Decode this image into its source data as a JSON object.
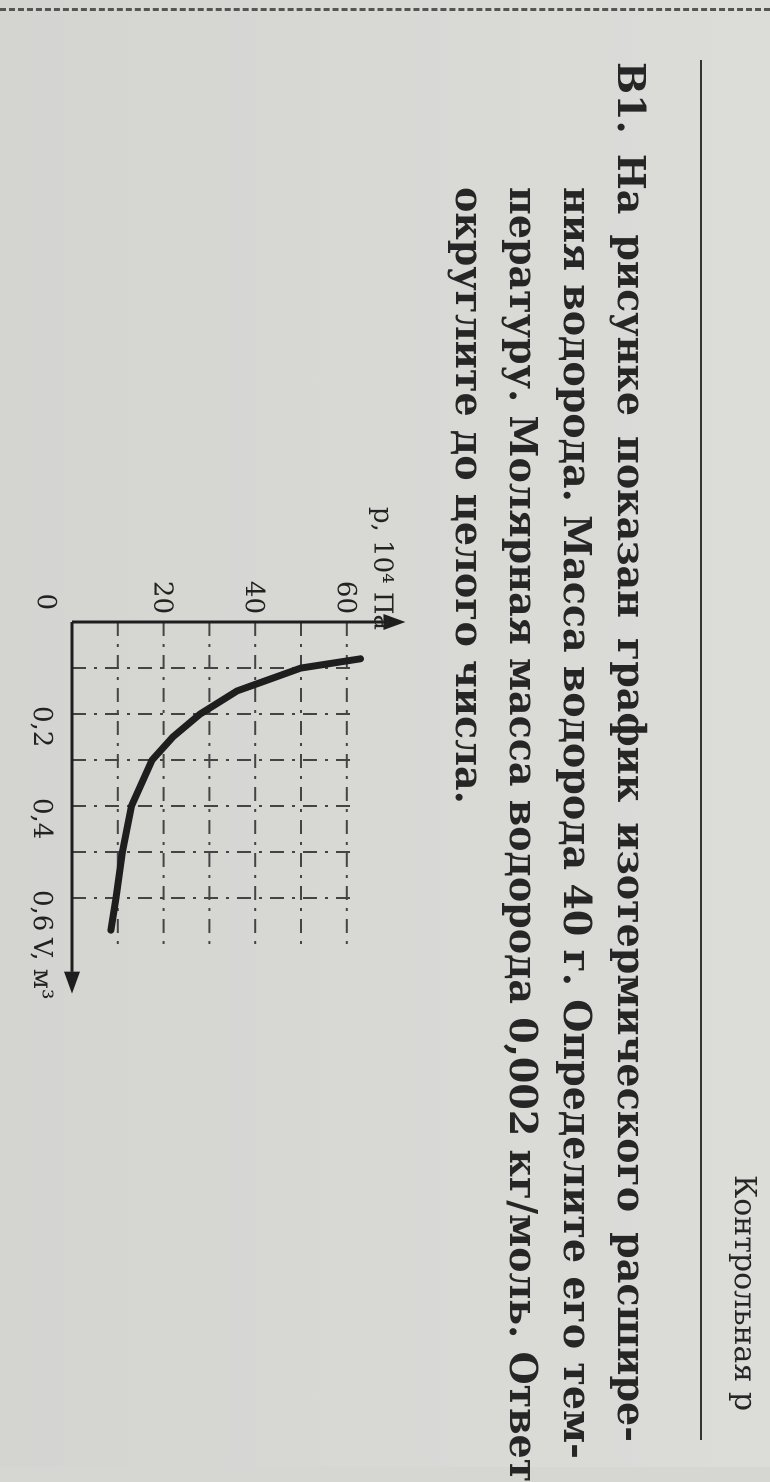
{
  "header": {
    "running_title": "Контрольная р"
  },
  "problem": {
    "number": "В1.",
    "lines": [
      "На рисунке показан график изотермического расшире-",
      "ния водорода. Масса водорода 40 г. Определите его тем-",
      "пературу. Молярная масса водорода 0,002 кг/моль. Ответ",
      "округлите до целого числа."
    ]
  },
  "chart_data": {
    "type": "line",
    "xlabel": "V, м³",
    "ylabel": "p, 10⁴ Па",
    "origin_label": "0",
    "x_ticks": [
      "0,2",
      "0,4",
      "0,6"
    ],
    "x_tick_values": [
      0.2,
      0.4,
      0.6
    ],
    "y_ticks": [
      "20",
      "40",
      "60"
    ],
    "y_tick_values": [
      20,
      40,
      60
    ],
    "xlim": [
      0,
      0.7
    ],
    "ylim": [
      0,
      65
    ],
    "grid": true,
    "grid_x_step": 0.1,
    "grid_y_step": 10,
    "series": [
      {
        "x": [
          0.08,
          0.1,
          0.15,
          0.2,
          0.25,
          0.3,
          0.4,
          0.5,
          0.6,
          0.67
        ],
        "y": [
          63,
          50,
          36,
          28,
          22,
          17.5,
          13,
          11,
          9.6,
          8.5
        ]
      }
    ],
    "colors": {
      "ink": "#222222"
    }
  }
}
